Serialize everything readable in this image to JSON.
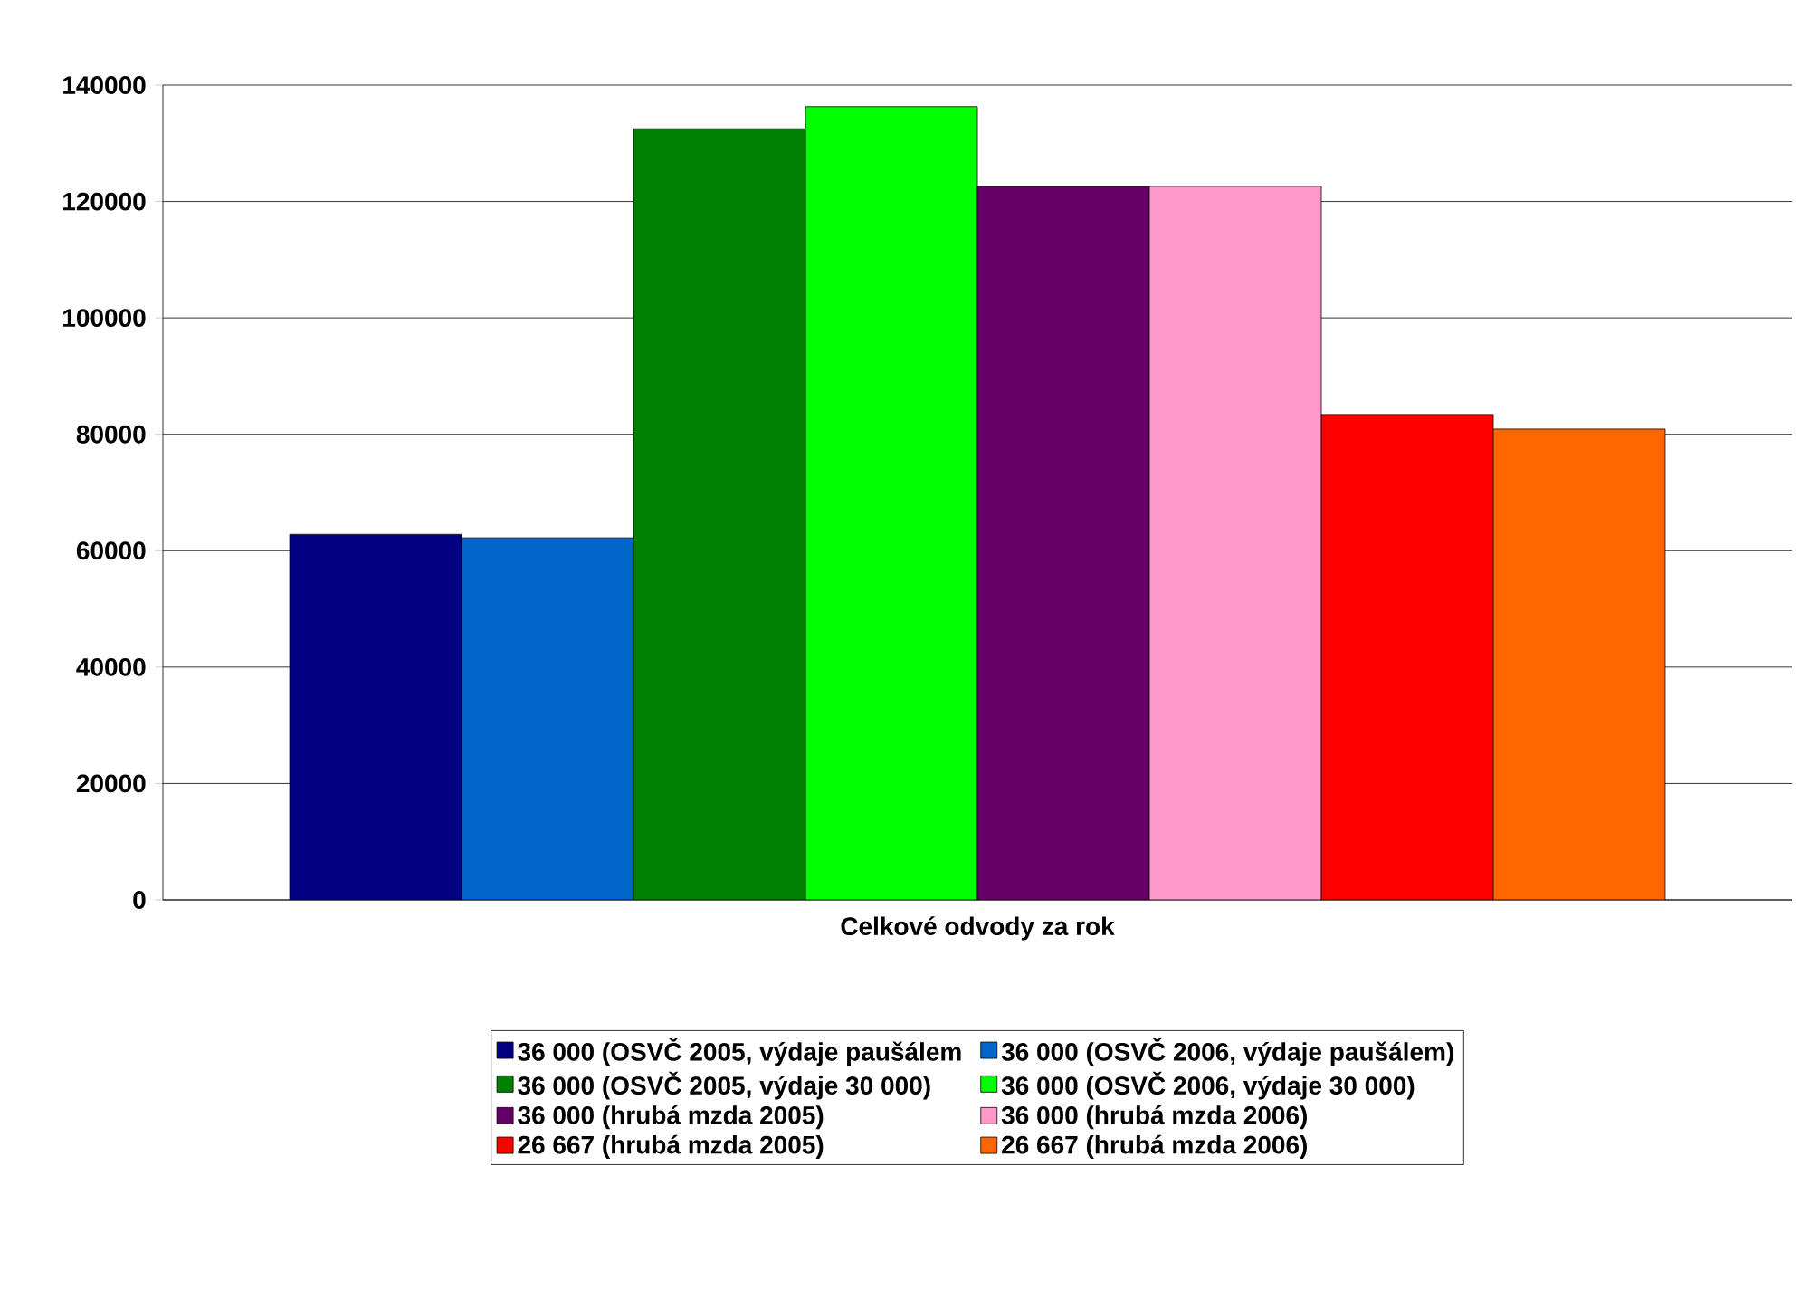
{
  "chart_data": {
    "type": "bar",
    "categories": [
      "Celkové odvody za rok"
    ],
    "series": [
      {
        "name": "36 000 (OSVČ 2005, výdaje paušálem",
        "color": "#000080",
        "values": [
          62800
        ]
      },
      {
        "name": "36 000 (OSVČ 2006, výdaje paušálem)",
        "color": "#0066cc",
        "values": [
          62200
        ]
      },
      {
        "name": "36 000 (OSVČ 2005, výdaje 30 000)",
        "color": "#008000",
        "values": [
          132500
        ]
      },
      {
        "name": "36 000 (OSVČ 2006, výdaje 30 000)",
        "color": "#00ff00",
        "values": [
          136300
        ]
      },
      {
        "name": "36 000 (hrubá mzda 2005)",
        "color": "#660066",
        "values": [
          122600
        ]
      },
      {
        "name": "36 000 (hrubá mzda 2006)",
        "color": "#ff99cc",
        "values": [
          122600
        ]
      },
      {
        "name": "26 667 (hrubá mzda 2005)",
        "color": "#ff0000",
        "values": [
          83400
        ]
      },
      {
        "name": "26 667 (hrubá mzda 2006)",
        "color": "#ff6600",
        "values": [
          80900
        ]
      }
    ],
    "ylim": [
      0,
      140000
    ],
    "yticks": [
      0,
      20000,
      40000,
      60000,
      80000,
      100000,
      120000,
      140000
    ],
    "grid": "y",
    "legend": "bottom"
  }
}
